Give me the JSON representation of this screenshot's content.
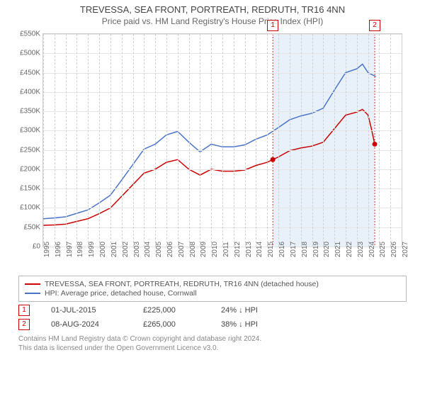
{
  "title": "TREVESSA, SEA FRONT, PORTREATH, REDRUTH, TR16 4NN",
  "subtitle": "Price paid vs. HM Land Registry's House Price Index (HPI)",
  "chart": {
    "type": "line",
    "background_color": "#ffffff",
    "border_color": "#cccccc",
    "grid_color": "#e5e5e5",
    "shade_color": "#e8f0fa",
    "x_years": [
      1995,
      1996,
      1997,
      1998,
      1999,
      2000,
      2001,
      2002,
      2003,
      2004,
      2005,
      2006,
      2007,
      2008,
      2009,
      2010,
      2011,
      2012,
      2013,
      2014,
      2015,
      2016,
      2017,
      2018,
      2019,
      2020,
      2021,
      2022,
      2023,
      2024,
      2025,
      2026,
      2027
    ],
    "xlim": [
      1995,
      2027
    ],
    "ylim": [
      0,
      550000
    ],
    "ytick_step": 50000,
    "ytick_labels": [
      "£0",
      "£50K",
      "£100K",
      "£150K",
      "£200K",
      "£250K",
      "£300K",
      "£350K",
      "£400K",
      "£450K",
      "£500K",
      "£550K"
    ],
    "label_fontsize": 10,
    "line_width": 1.5,
    "series": {
      "trevessa": {
        "label": "TREVESSA, SEA FRONT, PORTREATH, REDRUTH, TR16 4NN (detached house)",
        "color": "#cc0000",
        "x": [
          1995,
          1996,
          1997,
          1998,
          1999,
          2000,
          2001,
          2002,
          2003,
          2004,
          2005,
          2006,
          2007,
          2008,
          2009,
          2010,
          2011,
          2012,
          2013,
          2014,
          2015,
          2015.5,
          2016,
          2017,
          2018,
          2019,
          2020,
          2021,
          2022,
          2023,
          2023.5,
          2024,
          2024.3,
          2024.6
        ],
        "y": [
          55000,
          56000,
          58000,
          65000,
          72000,
          85000,
          100000,
          130000,
          160000,
          190000,
          200000,
          218000,
          225000,
          200000,
          185000,
          200000,
          195000,
          195000,
          198000,
          210000,
          218000,
          225000,
          232000,
          248000,
          255000,
          260000,
          270000,
          305000,
          340000,
          348000,
          355000,
          340000,
          305000,
          265000
        ]
      },
      "hpi": {
        "label": "HPI: Average price, detached house, Cornwall",
        "color": "#4a74c9",
        "x": [
          1995,
          1996,
          1997,
          1998,
          1999,
          2000,
          2001,
          2002,
          2003,
          2004,
          2005,
          2006,
          2007,
          2008,
          2009,
          2010,
          2011,
          2012,
          2013,
          2014,
          2015,
          2016,
          2017,
          2018,
          2019,
          2020,
          2021,
          2022,
          2023,
          2023.5,
          2024,
          2024.7
        ],
        "y": [
          72000,
          74000,
          77000,
          86000,
          95000,
          113000,
          133000,
          172000,
          212000,
          252000,
          265000,
          289000,
          298000,
          270000,
          245000,
          265000,
          258000,
          258000,
          263000,
          278000,
          289000,
          308000,
          328000,
          338000,
          345000,
          358000,
          405000,
          450000,
          460000,
          472000,
          450000,
          440000
        ]
      }
    },
    "sale_markers": [
      {
        "n": "1",
        "x": 2015.5,
        "y": 225000
      },
      {
        "n": "2",
        "x": 2024.6,
        "y": 265000
      }
    ]
  },
  "legend": {
    "border_color": "#bbbbbb"
  },
  "sales": [
    {
      "n": "1",
      "date": "01-JUL-2015",
      "price": "£225,000",
      "pct": "24% ↓ HPI"
    },
    {
      "n": "2",
      "date": "08-AUG-2024",
      "price": "£265,000",
      "pct": "38% ↓ HPI"
    }
  ],
  "footer": {
    "line1": "Contains HM Land Registry data © Crown copyright and database right 2024.",
    "line2": "This data is licensed under the Open Government Licence v3.0."
  }
}
